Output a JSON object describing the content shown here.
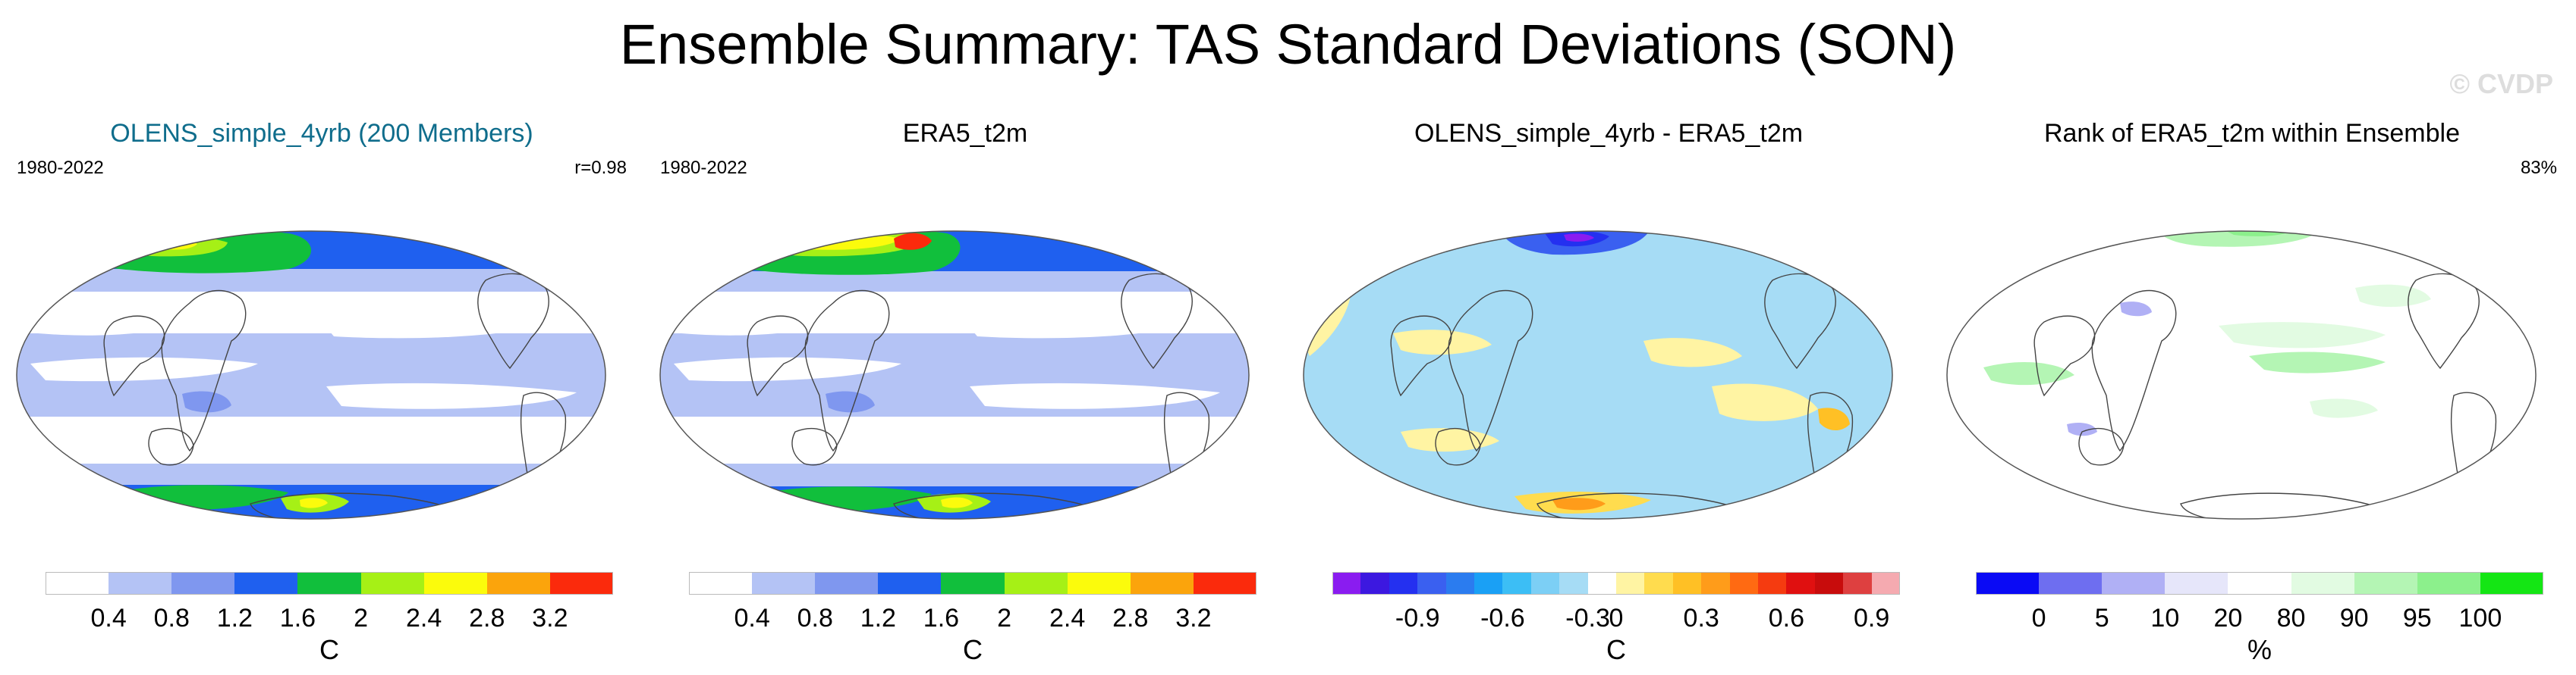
{
  "title": "Ensemble Summary: TAS Standard Deviations (SON)",
  "watermark": "© CVDP",
  "panels": [
    {
      "title": "OLENS_simple_4yrb (200 Members)",
      "title_color": "#0f6d8c",
      "left_label": "1980-2022",
      "right_label": "r=0.98",
      "map_style": "ensemble",
      "colorbar": {
        "colors": [
          "#ffffff",
          "#b4c3f5",
          "#7f97ef",
          "#1f60ef",
          "#11bf3c",
          "#a6f016",
          "#fbfb0c",
          "#fba40c",
          "#fb2a0c"
        ],
        "ticks": [
          "0.4",
          "0.8",
          "1.2",
          "1.6",
          "2",
          "2.4",
          "2.8",
          "3.2"
        ],
        "unit": "C"
      }
    },
    {
      "title": "ERA5_t2m",
      "title_color": "#000000",
      "left_label": "1980-2022",
      "right_label": "",
      "map_style": "observed",
      "colorbar": {
        "colors": [
          "#ffffff",
          "#b4c3f5",
          "#7f97ef",
          "#1f60ef",
          "#11bf3c",
          "#a6f016",
          "#fbfb0c",
          "#fba40c",
          "#fb2a0c"
        ],
        "ticks": [
          "0.4",
          "0.8",
          "1.2",
          "1.6",
          "2",
          "2.4",
          "2.8",
          "3.2"
        ],
        "unit": "C"
      }
    },
    {
      "title": "OLENS_simple_4yrb - ERA5_t2m",
      "title_color": "#000000",
      "left_label": "",
      "right_label": "",
      "map_style": "difference",
      "colorbar": {
        "colors": [
          "#8a1cf0",
          "#3c18e0",
          "#2430f0",
          "#3a60f0",
          "#2b7cef",
          "#1aa0f5",
          "#3cbef5",
          "#7ccff5",
          "#a6dcf5",
          "#ffffff",
          "#fff4a3",
          "#ffdc4e",
          "#ffc025",
          "#ff9c1a",
          "#ff6a12",
          "#f53b10",
          "#e01010",
          "#c80c0c",
          "#de4040",
          "#f5aab0"
        ],
        "ticks": [
          "-0.9",
          "-0.6",
          "-0.3",
          "0",
          "0.3",
          "0.6",
          "0.9"
        ],
        "unit": "C"
      }
    },
    {
      "title": "Rank of ERA5_t2m within Ensemble",
      "title_color": "#000000",
      "left_label": "",
      "right_label": "83%",
      "map_style": "rank",
      "colorbar": {
        "colors": [
          "#0a0af5",
          "#6e6ef0",
          "#b0b0f5",
          "#e6e6fa",
          "#ffffff",
          "#e2fbe2",
          "#b4f5b4",
          "#8cf08c",
          "#14e614"
        ],
        "ticks": [
          "0",
          "5",
          "10",
          "20",
          "80",
          "90",
          "95",
          "100"
        ],
        "unit": "%"
      }
    }
  ]
}
